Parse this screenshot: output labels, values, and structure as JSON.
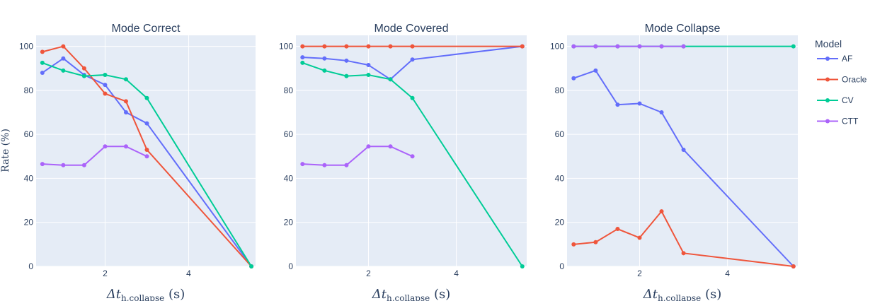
{
  "legend": {
    "title": "Model",
    "placement": "right"
  },
  "y_axis_label": "Rate (%)",
  "x_axis_label": {
    "main": "Δt",
    "sub": "h,collapse",
    "unit": " (s)"
  },
  "colors": {
    "plot_bg": "#e5ecf6",
    "grid": "#ffffff",
    "text": "#2a3f5f"
  },
  "chart_data": [
    {
      "type": "line",
      "title": "Mode Correct",
      "xlim": [
        0.35,
        5.6
      ],
      "ylim": [
        0,
        105
      ],
      "x_ticks": [
        2,
        4
      ],
      "y_ticks": [
        0,
        20,
        40,
        60,
        80,
        100
      ],
      "grid": true,
      "series": [
        {
          "name": "AF",
          "color": "#636efa",
          "x": [
            0.5,
            1.0,
            1.5,
            2.0,
            2.5,
            3.0,
            5.5
          ],
          "y": [
            88,
            94.5,
            87,
            82.5,
            70,
            65,
            0
          ]
        },
        {
          "name": "Oracle",
          "color": "#ef553b",
          "x": [
            0.5,
            1.0,
            1.5,
            2.0,
            2.5,
            3.0,
            5.5
          ],
          "y": [
            97.5,
            100,
            90,
            78.5,
            75,
            53,
            0
          ]
        },
        {
          "name": "CV",
          "color": "#00cc96",
          "x": [
            0.5,
            1.0,
            1.5,
            2.0,
            2.5,
            3.0,
            5.5
          ],
          "y": [
            92.5,
            89,
            86.5,
            87,
            85,
            76.5,
            0
          ]
        },
        {
          "name": "CTT",
          "color": "#ab63fa",
          "x": [
            0.5,
            1.0,
            1.5,
            2.0,
            2.5,
            3.0
          ],
          "y": [
            46.5,
            46,
            46,
            54.5,
            54.5,
            50
          ]
        }
      ]
    },
    {
      "type": "line",
      "title": "Mode Covered",
      "xlim": [
        0.35,
        5.6
      ],
      "ylim": [
        0,
        105
      ],
      "x_ticks": [
        2,
        4
      ],
      "y_ticks": [
        0,
        20,
        40,
        60,
        80,
        100
      ],
      "grid": true,
      "series": [
        {
          "name": "AF",
          "color": "#636efa",
          "x": [
            0.5,
            1.0,
            1.5,
            2.0,
            2.5,
            3.0,
            5.5
          ],
          "y": [
            95,
            94.5,
            93.5,
            91.5,
            85,
            94,
            100
          ]
        },
        {
          "name": "Oracle",
          "color": "#ef553b",
          "x": [
            0.5,
            1.0,
            1.5,
            2.0,
            2.5,
            3.0,
            5.5
          ],
          "y": [
            100,
            100,
            100,
            100,
            100,
            100,
            100
          ]
        },
        {
          "name": "CV",
          "color": "#00cc96",
          "x": [
            0.5,
            1.0,
            1.5,
            2.0,
            2.5,
            3.0,
            5.5
          ],
          "y": [
            92.5,
            89,
            86.5,
            87,
            85,
            76.5,
            0
          ]
        },
        {
          "name": "CTT",
          "color": "#ab63fa",
          "x": [
            0.5,
            1.0,
            1.5,
            2.0,
            2.5,
            3.0
          ],
          "y": [
            46.5,
            46,
            46,
            54.5,
            54.5,
            50
          ]
        }
      ]
    },
    {
      "type": "line",
      "title": "Mode Collapse",
      "xlim": [
        0.35,
        5.6
      ],
      "ylim": [
        0,
        105
      ],
      "x_ticks": [
        2,
        4
      ],
      "y_ticks": [
        0,
        20,
        40,
        60,
        80,
        100
      ],
      "grid": true,
      "series": [
        {
          "name": "AF",
          "color": "#636efa",
          "x": [
            0.5,
            1.0,
            1.5,
            2.0,
            2.5,
            3.0,
            5.5
          ],
          "y": [
            85.5,
            89,
            73.5,
            74,
            70,
            53,
            0
          ]
        },
        {
          "name": "Oracle",
          "color": "#ef553b",
          "x": [
            0.5,
            1.0,
            1.5,
            2.0,
            2.5,
            3.0,
            5.5
          ],
          "y": [
            10,
            11,
            17,
            13,
            25,
            6,
            0
          ]
        },
        {
          "name": "CV",
          "color": "#00cc96",
          "x": [
            0.5,
            1.0,
            1.5,
            2.0,
            2.5,
            3.0,
            5.5
          ],
          "y": [
            100,
            100,
            100,
            100,
            100,
            100,
            100
          ]
        },
        {
          "name": "CTT",
          "color": "#ab63fa",
          "x": [
            0.5,
            1.0,
            1.5,
            2.0,
            2.5,
            3.0
          ],
          "y": [
            100,
            100,
            100,
            100,
            100,
            100
          ]
        }
      ]
    }
  ]
}
